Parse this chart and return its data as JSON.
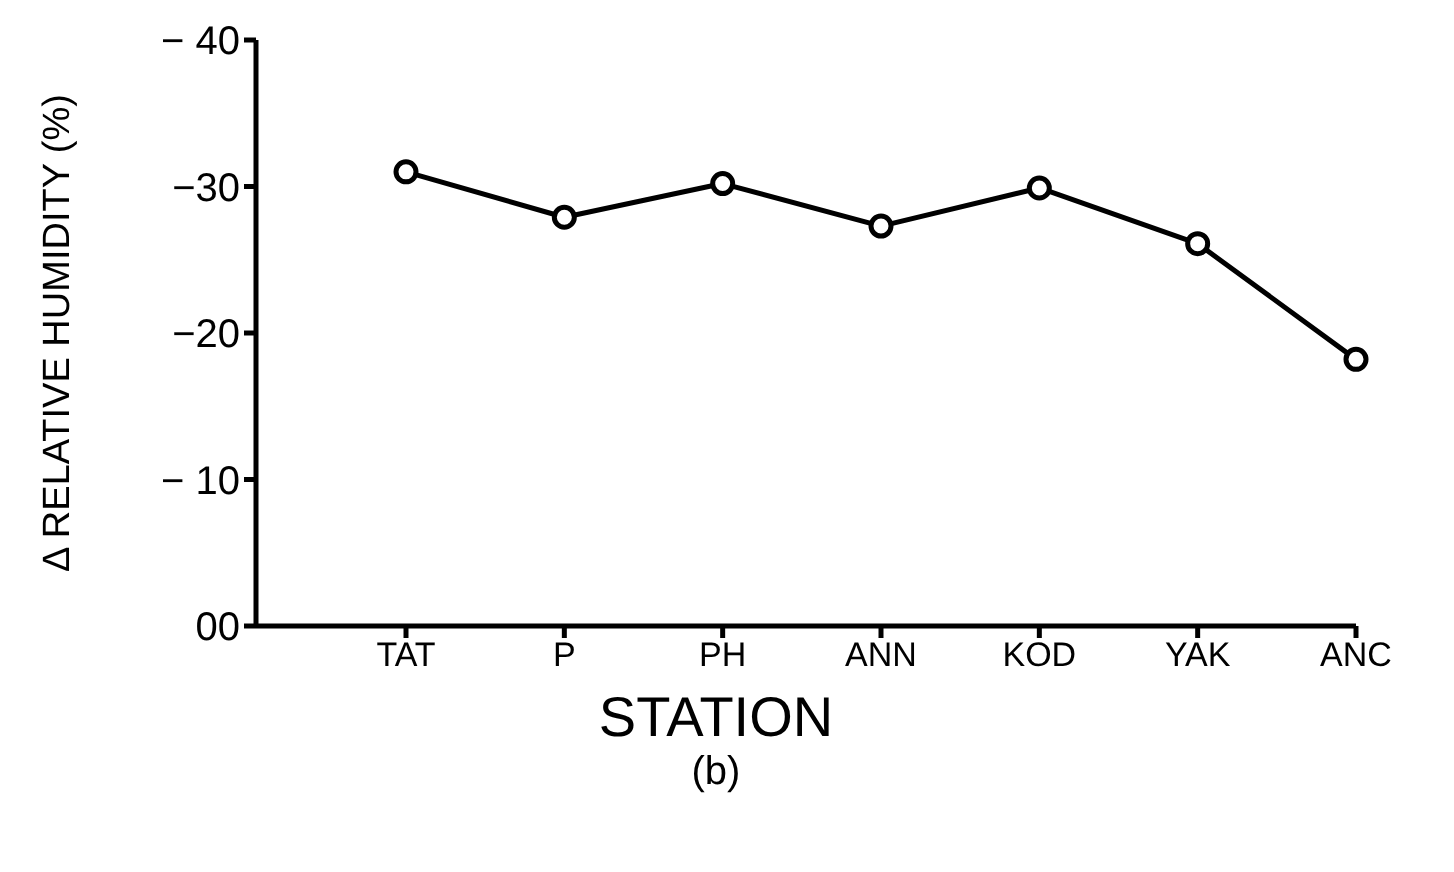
{
  "chart_data": {
    "type": "line",
    "xlabel": "STATION",
    "ylabel": "Δ RELATIVE HUMIDITY (%)",
    "annotations": [
      "(b)"
    ],
    "categories": [
      "TAT",
      "P",
      "PH",
      "ANN",
      "KOD",
      "YAK",
      "ANC"
    ],
    "series": [
      {
        "color": "#000000",
        "values": [
          -31.0,
          -27.9,
          -30.2,
          -27.3,
          -29.9,
          -26.1,
          -18.2
        ]
      }
    ],
    "ylim": [
      0,
      -40
    ],
    "yticks": [
      {
        "value": -40,
        "label": "− 40"
      },
      {
        "value": -30,
        "label": "−30"
      },
      {
        "value": -20,
        "label": "−20"
      },
      {
        "value": -10,
        "label": "− 10"
      },
      {
        "value": 0,
        "label": "00"
      }
    ],
    "marker": "circle",
    "line_style": "solid",
    "grid": false,
    "legend": false
  }
}
